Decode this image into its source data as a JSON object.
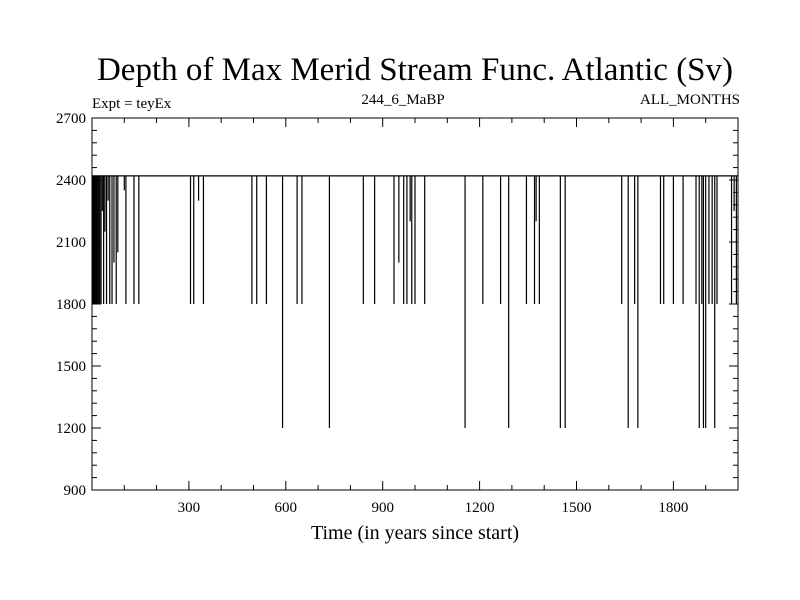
{
  "chart_data": {
    "type": "line",
    "title": "Depth of Max Merid Stream Func. Atlantic (Sv)",
    "subtitle_left": "Expt = teyEx",
    "subtitle_center": "244_6_MaBP",
    "subtitle_right": "ALL_MONTHS",
    "xlabel": "Time (in years since start)",
    "ylabel": "",
    "xlim": [
      0,
      2000
    ],
    "ylim": [
      900,
      2700
    ],
    "x_ticks": [
      300,
      600,
      900,
      1200,
      1500,
      1800
    ],
    "y_ticks": [
      900,
      1200,
      1500,
      1800,
      2100,
      2400,
      2700
    ],
    "baseline": 2420,
    "grid": false,
    "series": [
      {
        "drops": [
          {
            "x": 3,
            "y": 1800
          },
          {
            "x": 6,
            "y": 1800
          },
          {
            "x": 9,
            "y": 1800
          },
          {
            "x": 12,
            "y": 1800
          },
          {
            "x": 15,
            "y": 1800
          },
          {
            "x": 18,
            "y": 1800
          },
          {
            "x": 21,
            "y": 1800
          },
          {
            "x": 24,
            "y": 1800
          },
          {
            "x": 28,
            "y": 1800
          },
          {
            "x": 32,
            "y": 2250
          },
          {
            "x": 36,
            "y": 1800
          },
          {
            "x": 40,
            "y": 2150
          },
          {
            "x": 45,
            "y": 1800
          },
          {
            "x": 50,
            "y": 2300
          },
          {
            "x": 55,
            "y": 1800
          },
          {
            "x": 62,
            "y": 1800
          },
          {
            "x": 68,
            "y": 2000
          },
          {
            "x": 75,
            "y": 1800
          },
          {
            "x": 80,
            "y": 2050
          },
          {
            "x": 100,
            "y": 2350
          },
          {
            "x": 105,
            "y": 1800
          },
          {
            "x": 130,
            "y": 1800
          },
          {
            "x": 145,
            "y": 1800
          },
          {
            "x": 305,
            "y": 1800
          },
          {
            "x": 315,
            "y": 1800
          },
          {
            "x": 330,
            "y": 2300
          },
          {
            "x": 345,
            "y": 1800
          },
          {
            "x": 495,
            "y": 1800
          },
          {
            "x": 510,
            "y": 1800
          },
          {
            "x": 540,
            "y": 1800
          },
          {
            "x": 590,
            "y": 1200
          },
          {
            "x": 635,
            "y": 1800
          },
          {
            "x": 650,
            "y": 1800
          },
          {
            "x": 735,
            "y": 1200
          },
          {
            "x": 840,
            "y": 1800
          },
          {
            "x": 875,
            "y": 1800
          },
          {
            "x": 935,
            "y": 1800
          },
          {
            "x": 950,
            "y": 2000
          },
          {
            "x": 965,
            "y": 1800
          },
          {
            "x": 975,
            "y": 1800
          },
          {
            "x": 985,
            "y": 2200
          },
          {
            "x": 990,
            "y": 1800
          },
          {
            "x": 1000,
            "y": 1800
          },
          {
            "x": 1030,
            "y": 1800
          },
          {
            "x": 1155,
            "y": 1200
          },
          {
            "x": 1210,
            "y": 1800
          },
          {
            "x": 1265,
            "y": 1800
          },
          {
            "x": 1290,
            "y": 1200
          },
          {
            "x": 1345,
            "y": 1800
          },
          {
            "x": 1370,
            "y": 1800
          },
          {
            "x": 1375,
            "y": 2200
          },
          {
            "x": 1385,
            "y": 1800
          },
          {
            "x": 1450,
            "y": 1200
          },
          {
            "x": 1465,
            "y": 1200
          },
          {
            "x": 1640,
            "y": 1800
          },
          {
            "x": 1660,
            "y": 1200
          },
          {
            "x": 1680,
            "y": 1800
          },
          {
            "x": 1690,
            "y": 1200
          },
          {
            "x": 1760,
            "y": 1800
          },
          {
            "x": 1770,
            "y": 1800
          },
          {
            "x": 1800,
            "y": 1800
          },
          {
            "x": 1830,
            "y": 1800
          },
          {
            "x": 1870,
            "y": 1800
          },
          {
            "x": 1880,
            "y": 1200
          },
          {
            "x": 1888,
            "y": 1800
          },
          {
            "x": 1893,
            "y": 1200
          },
          {
            "x": 1900,
            "y": 1200
          },
          {
            "x": 1910,
            "y": 1800
          },
          {
            "x": 1920,
            "y": 1800
          },
          {
            "x": 1928,
            "y": 1200
          },
          {
            "x": 1935,
            "y": 1800
          },
          {
            "x": 1980,
            "y": 1800
          },
          {
            "x": 1988,
            "y": 2250
          },
          {
            "x": 1995,
            "y": 1800
          }
        ]
      }
    ]
  }
}
